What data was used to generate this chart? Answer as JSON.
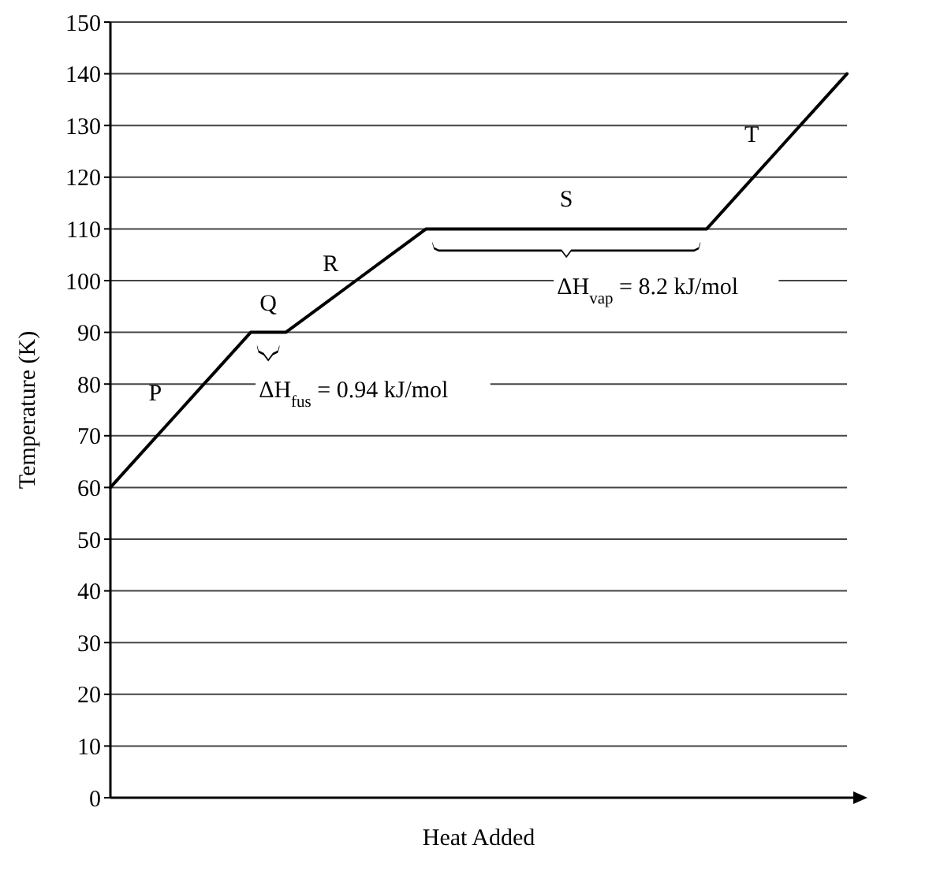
{
  "chart_data": {
    "type": "line",
    "xlabel": "Heat Added",
    "ylabel": "Temperature (K)",
    "categories": [
      null,
      null,
      null,
      null,
      null,
      null,
      null,
      null,
      null,
      null,
      null,
      null,
      null,
      null,
      null,
      null,
      null,
      null,
      null,
      null,
      null,
      null
    ],
    "series": [
      {
        "color": "#000000",
        "values": [
          60,
          67.5,
          75,
          82.5,
          90,
          90,
          95,
          100,
          105,
          110,
          110,
          110,
          110,
          110,
          110,
          110,
          110,
          110,
          117.5,
          125,
          132.5,
          140
        ]
      }
    ],
    "ylim": [
      0,
      150
    ],
    "yticks": [
      0,
      10,
      20,
      30,
      40,
      50,
      60,
      70,
      80,
      90,
      100,
      110,
      120,
      130,
      140,
      150
    ],
    "tick_labels": "y",
    "grid": "y",
    "marker": "none",
    "line_style": "solid",
    "annotations": [
      "P",
      "Q",
      "R",
      "S",
      "T",
      "ΔH$_{fus}$ = 0.94 kJ/mol",
      "ΔH$_{vap}$ = 8.2 kJ/mol"
    ]
  }
}
